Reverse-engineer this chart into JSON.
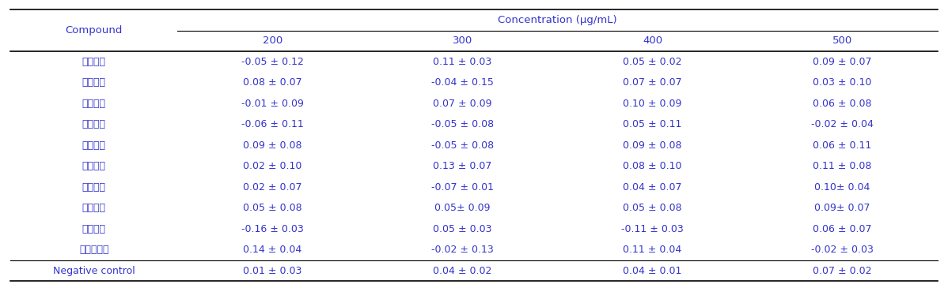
{
  "header_top": "Concentration (μg/mL)",
  "header_cols": [
    "Compound",
    "200",
    "300",
    "400",
    "500"
  ],
  "rows": [
    [
      "차가버섯",
      "-0.05 ± 0.12",
      "0.11 ± 0.03",
      "0.05 ± 0.02",
      "0.09 ± 0.07"
    ],
    [
      "상황버섯",
      "0.08 ± 0.07",
      "-0.04 ± 0.15",
      "0.07 ± 0.07",
      "0.03 ± 0.10"
    ],
    [
      "운지버섯",
      "-0.01 ± 0.09",
      "0.07 ± 0.09",
      "0.10 ± 0.09",
      "0.06 ± 0.08"
    ],
    [
      "동충하초",
      "-0.06 ± 0.11",
      "-0.05 ± 0.08",
      "0.05 ± 0.11",
      "-0.02 ± 0.04"
    ],
    [
      "영지버섯",
      "0.09 ± 0.08",
      "-0.05 ± 0.08",
      "0.09 ± 0.08",
      "0.06 ± 0.11"
    ],
    [
      "잎새버섯",
      "0.02 ± 0.10",
      "0.13 ± 0.07",
      "0.08 ± 0.10",
      "0.11 ± 0.08"
    ],
    [
      "표고버섯",
      "0.02 ± 0.07",
      "-0.07 ± 0.01",
      "0.04 ± 0.07",
      "0.10± 0.04"
    ],
    [
      "팽이버섯",
      "0.05 ± 0.08",
      "0.05± 0.09",
      "0.05 ± 0.08",
      "0.09± 0.07"
    ],
    [
      "목이버섯",
      "-0.16 ± 0.03",
      "0.05 ± 0.03",
      "-0.11 ± 0.03",
      "0.06 ± 0.07"
    ],
    [
      "느타리버섯",
      "0.14 ± 0.04",
      "-0.02 ± 0.13",
      "0.11 ± 0.04",
      "-0.02 ± 0.03"
    ],
    [
      "Negative control",
      "0.01 ± 0.03",
      "0.04 ± 0.02",
      "0.04 ± 0.01",
      "0.07 ± 0.02"
    ]
  ],
  "text_color": "#3333cc",
  "bg_color": "#ffffff",
  "line_color": "#000000",
  "font_size_header": 9.5,
  "font_size_data": 9.0
}
